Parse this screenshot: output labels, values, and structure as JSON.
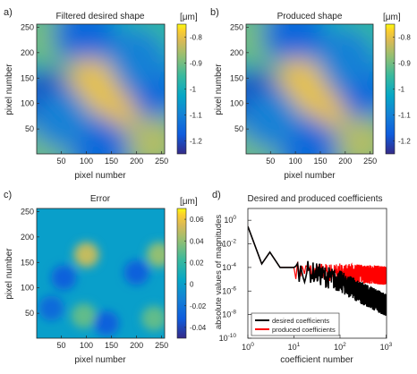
{
  "panels": [
    {
      "letter": "a)",
      "title": "Filtered desired shape",
      "xlabel": "pixel number",
      "ylabel": "pixel number",
      "unit": "[μm]"
    },
    {
      "letter": "b)",
      "title": "Produced shape",
      "xlabel": "pixel number",
      "ylabel": "pixel number",
      "unit": "[μm]"
    },
    {
      "letter": "c)",
      "title": "Error",
      "xlabel": "pixel number",
      "ylabel": "pixel number",
      "unit": "[μm]"
    },
    {
      "letter": "d)",
      "title": "Desired and produced coefficients",
      "xlabel": "coefficient number",
      "ylabel": "absolute values of magnitudes"
    }
  ],
  "chart_data": [
    {
      "type": "heatmap",
      "title": "Filtered desired shape",
      "xlabel": "pixel number",
      "ylabel": "pixel number",
      "xlim": [
        1,
        256
      ],
      "ylim": [
        1,
        256
      ],
      "xticks": [
        50,
        100,
        150,
        200,
        250
      ],
      "yticks": [
        50,
        100,
        150,
        200,
        250
      ],
      "colorbar": {
        "label": "[μm]",
        "range": [
          -1.25,
          -0.75
        ],
        "ticks": [
          -0.8,
          -0.9,
          -1,
          -1.1,
          -1.2
        ]
      },
      "colormap": "parula",
      "features": [
        {
          "x": 20,
          "y": 230,
          "value": -0.9
        },
        {
          "x": 230,
          "y": 230,
          "value": -0.95
        },
        {
          "x": 20,
          "y": 20,
          "value": -0.9
        },
        {
          "x": 230,
          "y": 25,
          "value": -0.85
        },
        {
          "x": 115,
          "y": 140,
          "value": -0.77
        },
        {
          "x": 150,
          "y": 105,
          "value": -0.77
        },
        {
          "x": 95,
          "y": 235,
          "value": -1.15
        },
        {
          "x": 125,
          "y": 20,
          "value": -1.15
        },
        {
          "x": 20,
          "y": 105,
          "value": -1.2
        },
        {
          "x": 225,
          "y": 130,
          "value": -1.15
        },
        {
          "x": 50,
          "y": 70,
          "value": -1.1
        },
        {
          "x": 200,
          "y": 190,
          "value": -1.1
        }
      ]
    },
    {
      "type": "heatmap",
      "title": "Produced shape",
      "xlabel": "pixel number",
      "ylabel": "pixel number",
      "xlim": [
        1,
        256
      ],
      "ylim": [
        1,
        256
      ],
      "xticks": [
        50,
        100,
        150,
        200,
        250
      ],
      "yticks": [
        50,
        100,
        150,
        200,
        250
      ],
      "colorbar": {
        "label": "[μm]",
        "range": [
          -1.25,
          -0.75
        ],
        "ticks": [
          -0.8,
          -0.9,
          -1,
          -1.1,
          -1.2
        ]
      },
      "colormap": "parula",
      "features": [
        {
          "x": 20,
          "y": 230,
          "value": -0.9
        },
        {
          "x": 230,
          "y": 230,
          "value": -0.95
        },
        {
          "x": 20,
          "y": 20,
          "value": -0.9
        },
        {
          "x": 230,
          "y": 25,
          "value": -0.85
        },
        {
          "x": 115,
          "y": 140,
          "value": -0.77
        },
        {
          "x": 150,
          "y": 105,
          "value": -0.77
        },
        {
          "x": 95,
          "y": 235,
          "value": -1.15
        },
        {
          "x": 125,
          "y": 20,
          "value": -1.15
        },
        {
          "x": 20,
          "y": 105,
          "value": -1.2
        },
        {
          "x": 225,
          "y": 130,
          "value": -1.15
        },
        {
          "x": 50,
          "y": 70,
          "value": -1.1
        },
        {
          "x": 200,
          "y": 190,
          "value": -1.1
        }
      ]
    },
    {
      "type": "heatmap",
      "title": "Error",
      "xlabel": "pixel number",
      "ylabel": "pixel number",
      "xlim": [
        1,
        256
      ],
      "ylim": [
        1,
        256
      ],
      "xticks": [
        50,
        100,
        150,
        200,
        250
      ],
      "yticks": [
        50,
        100,
        150,
        200,
        250
      ],
      "colorbar": {
        "label": "[μm]",
        "range": [
          -0.05,
          0.07
        ],
        "ticks": [
          0.06,
          0.04,
          0.02,
          0,
          -0.02,
          -0.04
        ]
      },
      "colormap": "parula",
      "features": [
        {
          "x": 100,
          "y": 165,
          "value": 0.05
        },
        {
          "x": 245,
          "y": 165,
          "value": 0.04
        },
        {
          "x": 235,
          "y": 40,
          "value": 0.03
        },
        {
          "x": 95,
          "y": 45,
          "value": 0.03
        },
        {
          "x": 140,
          "y": 30,
          "value": -0.03
        },
        {
          "x": 55,
          "y": 120,
          "value": -0.03
        },
        {
          "x": 200,
          "y": 130,
          "value": -0.03
        },
        {
          "x": 30,
          "y": 60,
          "value": -0.025
        }
      ]
    },
    {
      "type": "line",
      "title": "Desired and produced coefficients",
      "xlabel": "coefficient number",
      "ylabel": "absolute values of magnitudes",
      "xscale": "log",
      "yscale": "log",
      "xlim": [
        1,
        1024
      ],
      "ylim": [
        1e-10,
        10
      ],
      "xtick_labels": [
        "10^0",
        "10^1",
        "10^2",
        "10^3"
      ],
      "ytick_labels": [
        "10^0",
        "10^-2",
        "10^-4",
        "10^-6",
        "10^-8",
        "10^-10"
      ],
      "legend": {
        "position": "bottom-left",
        "entries": [
          "desired coefficients",
          "produced coefficients"
        ]
      },
      "series": [
        {
          "name": "desired coefficients",
          "color": "#000000",
          "trend": [
            {
              "x": 1,
              "y": 0.3
            },
            {
              "x": 1.5,
              "y": 0.005
            },
            {
              "x": 2,
              "y": 0.0002
            },
            {
              "x": 3,
              "y": 0.002
            },
            {
              "x": 5,
              "y": 0.0001
            },
            {
              "x": 10,
              "y": 0.0001
            },
            {
              "x": 30,
              "y": 5e-05
            },
            {
              "x": 100,
              "y": 1e-05
            },
            {
              "x": 300,
              "y": 1e-06
            },
            {
              "x": 1000,
              "y": 1e-07
            }
          ]
        },
        {
          "name": "produced coefficients",
          "color": "#ff0000",
          "trend": [
            {
              "x": 1,
              "y": 0.3
            },
            {
              "x": 1.5,
              "y": 0.005
            },
            {
              "x": 2,
              "y": 0.0002
            },
            {
              "x": 3,
              "y": 0.002
            },
            {
              "x": 5,
              "y": 0.0001
            },
            {
              "x": 10,
              "y": 0.0001
            },
            {
              "x": 30,
              "y": 6e-05
            },
            {
              "x": 100,
              "y": 5e-05
            },
            {
              "x": 300,
              "y": 4e-05
            },
            {
              "x": 1000,
              "y": 3e-05
            }
          ]
        }
      ]
    }
  ]
}
